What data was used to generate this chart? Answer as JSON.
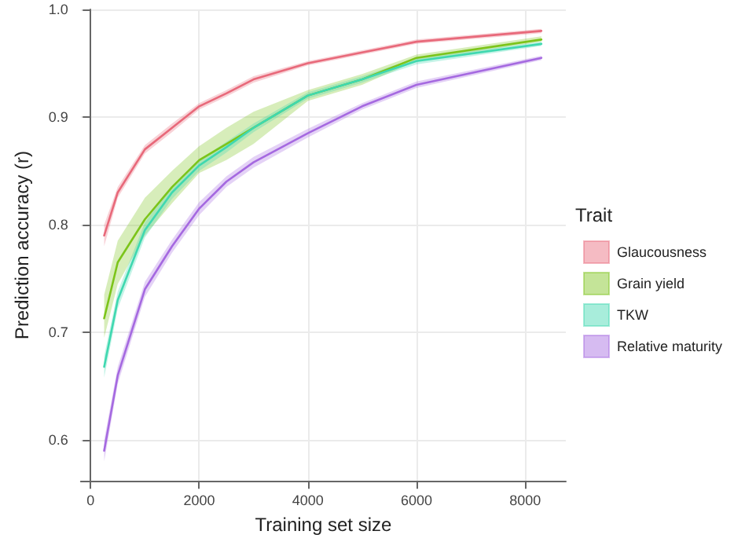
{
  "chart_data": {
    "type": "line",
    "xlabel": "Training set size",
    "ylabel": "Prediction accuracy (r)",
    "legend_title": "Trait",
    "legend": "right",
    "grid": true,
    "marker": "none",
    "line_style": "solid",
    "xlim": [
      -180,
      8750
    ],
    "xticks": [
      0,
      2000,
      4000,
      6000,
      8000
    ],
    "ylim": [
      0.562,
      1.0
    ],
    "yticks": [
      {
        "value": 0.6,
        "label": "0.6"
      },
      {
        "value": 0.7,
        "label": "0.7"
      },
      {
        "value": 0.8,
        "label": "0.8"
      },
      {
        "value": 0.9,
        "label": "0.9"
      },
      {
        "value": 1,
        "label": "1.0"
      }
    ],
    "x": [
      250,
      500,
      1000,
      1500,
      2000,
      2500,
      3000,
      4000,
      5000,
      6000,
      8300
    ],
    "series": [
      {
        "name": "Glaucousness",
        "color": "#e8697a",
        "values": [
          0.79,
          0.83,
          0.87,
          0.89,
          0.91,
          0.922,
          0.935,
          0.95,
          0.96,
          0.97,
          0.98
        ],
        "lower": [
          0.78,
          0.825,
          0.866,
          0.886,
          0.907,
          0.919,
          0.932,
          0.948,
          0.958,
          0.968,
          0.978
        ],
        "upper": [
          0.8,
          0.835,
          0.874,
          0.894,
          0.913,
          0.925,
          0.938,
          0.952,
          0.962,
          0.972,
          0.982
        ]
      },
      {
        "name": "Grain yield",
        "color": "#7cc41a",
        "values": [
          0.713,
          0.765,
          0.805,
          0.835,
          0.86,
          0.875,
          0.89,
          0.92,
          0.935,
          0.955,
          0.972
        ],
        "lower": [
          0.695,
          0.745,
          0.79,
          0.82,
          0.848,
          0.86,
          0.875,
          0.915,
          0.93,
          0.952,
          0.97
        ],
        "upper": [
          0.735,
          0.785,
          0.825,
          0.85,
          0.873,
          0.89,
          0.905,
          0.925,
          0.94,
          0.958,
          0.975
        ]
      },
      {
        "name": "TKW",
        "color": "#3fd8b0",
        "values": [
          0.668,
          0.73,
          0.795,
          0.83,
          0.855,
          0.872,
          0.89,
          0.92,
          0.935,
          0.952,
          0.968
        ],
        "lower": [
          0.658,
          0.722,
          0.788,
          0.824,
          0.85,
          0.867,
          0.886,
          0.917,
          0.932,
          0.949,
          0.966
        ],
        "upper": [
          0.678,
          0.738,
          0.802,
          0.836,
          0.86,
          0.877,
          0.894,
          0.923,
          0.938,
          0.955,
          0.97
        ]
      },
      {
        "name": "Relative maturity",
        "color": "#a569e0",
        "values": [
          0.59,
          0.66,
          0.74,
          0.78,
          0.815,
          0.84,
          0.858,
          0.885,
          0.91,
          0.93,
          0.955
        ],
        "lower": [
          0.58,
          0.652,
          0.733,
          0.774,
          0.809,
          0.835,
          0.853,
          0.881,
          0.907,
          0.927,
          0.953
        ],
        "upper": [
          0.6,
          0.668,
          0.747,
          0.786,
          0.821,
          0.845,
          0.863,
          0.889,
          0.913,
          0.933,
          0.957
        ]
      }
    ]
  }
}
